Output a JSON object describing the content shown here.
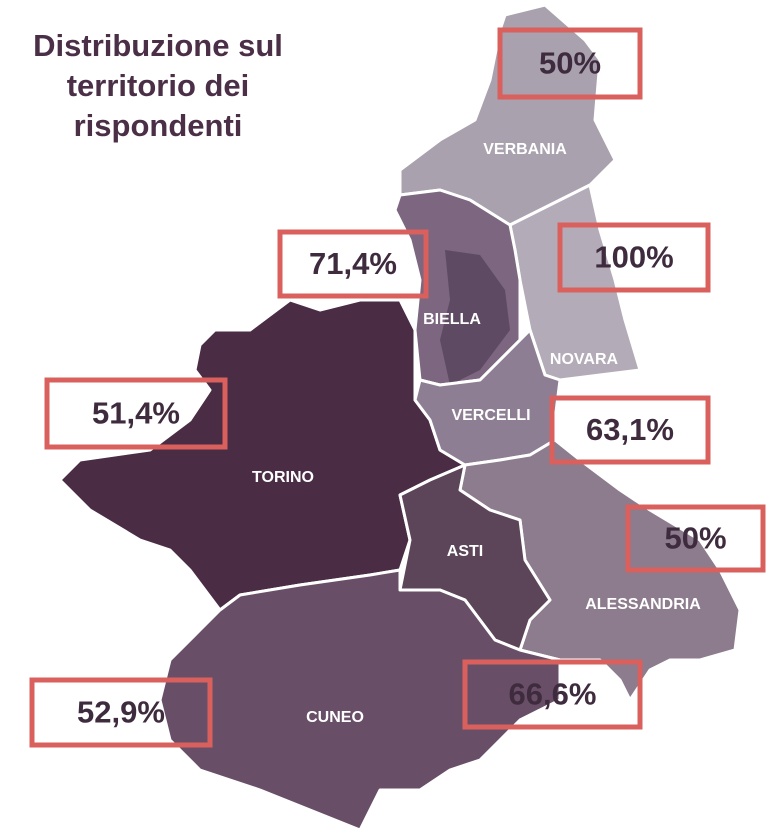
{
  "title": "Distribuzione sul territorio dei rispondenti",
  "regions": [
    {
      "name": "VERBANIA",
      "label": "50%"
    },
    {
      "name": "NOVARA",
      "label": "100%"
    },
    {
      "name": "BIELLA",
      "label": "71,4%"
    },
    {
      "name": "TORINO",
      "label": "51,4%"
    },
    {
      "name": "VERCELLI",
      "label": "63,1%"
    },
    {
      "name": "ALESSANDRIA",
      "label": "50%"
    },
    {
      "name": "ASTI",
      "label": "66,6%"
    },
    {
      "name": "CUNEO",
      "label": "52,9%"
    }
  ]
}
